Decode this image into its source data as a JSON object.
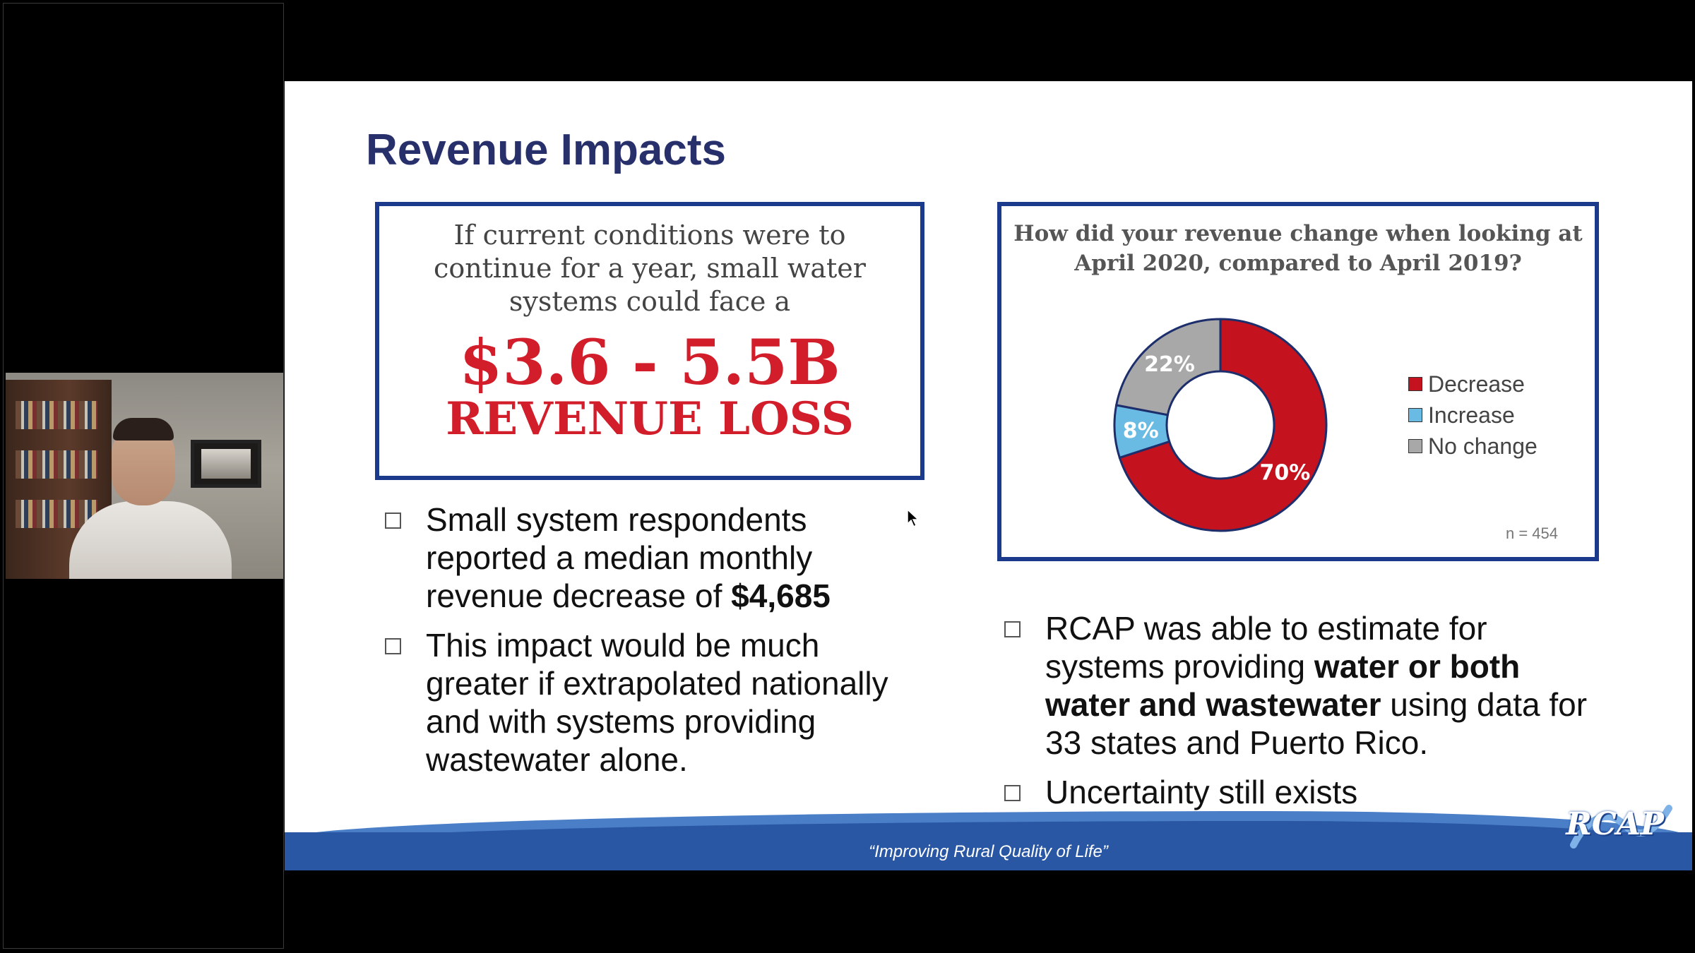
{
  "slide": {
    "title": "Revenue Impacts",
    "callout": {
      "lead": "If current conditions were to continue for a year, small water systems could face a",
      "amount": "$3.6 - 5.5B",
      "loss": "REVENUE LOSS"
    },
    "bullets_left": [
      {
        "before": "Small system respondents reported a median monthly revenue decrease of ",
        "bold": "$4,685",
        "after": ""
      },
      {
        "before": "This impact would be much greater if extrapolated nationally and with systems providing wastewater alone.",
        "bold": "",
        "after": ""
      }
    ],
    "bullets_right": [
      {
        "before": "RCAP was able to estimate for systems providing ",
        "bold": "water or both water and wastewater",
        "after": " using data for 33 states and Puerto Rico."
      },
      {
        "before": "Uncertainty still exists",
        "bold": "",
        "after": ""
      }
    ],
    "footer": {
      "tagline": "“Improving Rural Quality of Life”",
      "logo": "RCAP"
    }
  },
  "chart_data": {
    "type": "pie",
    "title": "How did your revenue change when looking at April 2020, compared to April 2019?",
    "categories": [
      "Decrease",
      "Increase",
      "No change"
    ],
    "values": [
      70,
      8,
      22
    ],
    "labels": [
      "70%",
      "8%",
      "22%"
    ],
    "colors": [
      "#c4121f",
      "#69bbe4",
      "#a8a8a8"
    ],
    "legend": "right",
    "note": "n = 454"
  },
  "colors": {
    "title": "#27306b",
    "border": "#1c3a8c",
    "accent_red": "#d21e2b",
    "footer": "#2a57a3"
  }
}
